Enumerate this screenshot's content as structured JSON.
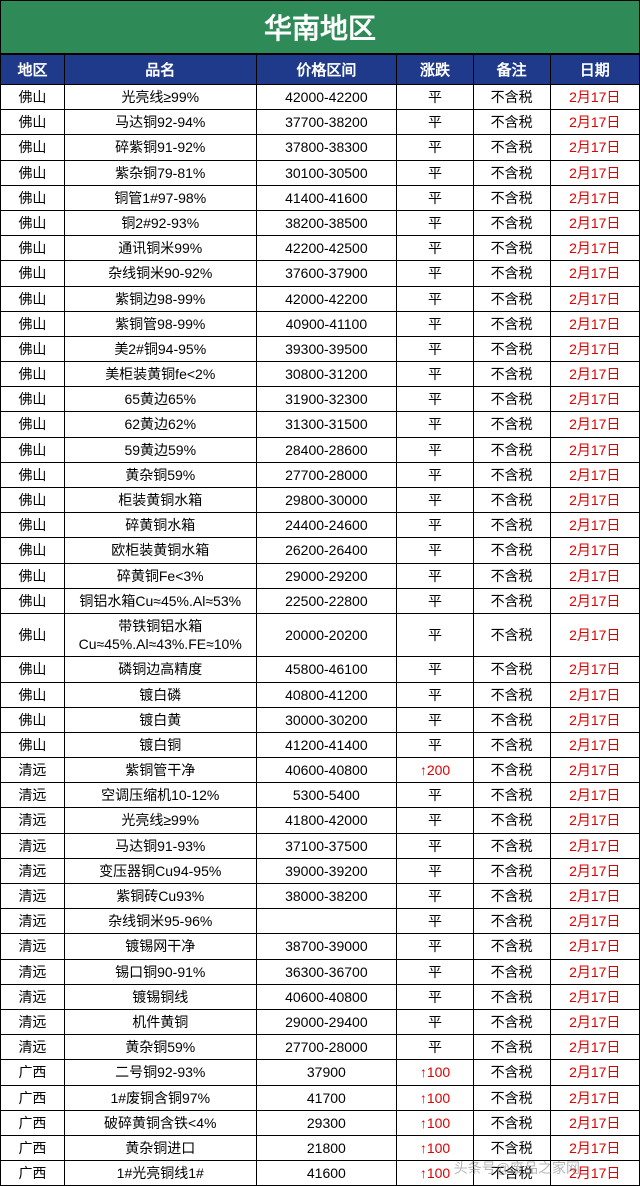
{
  "title": "华南地区",
  "headers": {
    "region": "地区",
    "product": "品名",
    "price": "价格区间",
    "change": "涨跌",
    "note": "备注",
    "date": "日期"
  },
  "watermark": "头条号@废品之家网",
  "table": {
    "columns": [
      "region",
      "product",
      "price",
      "change",
      "note",
      "date"
    ],
    "col_widths_pct": [
      10,
      30,
      22,
      12,
      12,
      14
    ],
    "header_bg": "#1f3a8a",
    "header_fg": "#ffffff",
    "title_bg": "#2e8b57",
    "title_fg": "#ffffff",
    "date_color": "#d00000",
    "up_color": "#d00000",
    "border_color": "#000000",
    "font_size_header": 15,
    "font_size_cell": 14
  },
  "rows": [
    {
      "region": "佛山",
      "product": "光亮线≥99%",
      "price": "42000-42200",
      "change": "平",
      "note": "不含税",
      "date": "2月17日",
      "up": false
    },
    {
      "region": "佛山",
      "product": "马达铜92-94%",
      "price": "37700-38200",
      "change": "平",
      "note": "不含税",
      "date": "2月17日",
      "up": false
    },
    {
      "region": "佛山",
      "product": "碎紫铜91-92%",
      "price": "37800-38300",
      "change": "平",
      "note": "不含税",
      "date": "2月17日",
      "up": false
    },
    {
      "region": "佛山",
      "product": "紫杂铜79-81%",
      "price": "30100-30500",
      "change": "平",
      "note": "不含税",
      "date": "2月17日",
      "up": false
    },
    {
      "region": "佛山",
      "product": "铜管1#97-98%",
      "price": "41400-41600",
      "change": "平",
      "note": "不含税",
      "date": "2月17日",
      "up": false
    },
    {
      "region": "佛山",
      "product": "铜2#92-93%",
      "price": "38200-38500",
      "change": "平",
      "note": "不含税",
      "date": "2月17日",
      "up": false
    },
    {
      "region": "佛山",
      "product": "通讯铜米99%",
      "price": "42200-42500",
      "change": "平",
      "note": "不含税",
      "date": "2月17日",
      "up": false
    },
    {
      "region": "佛山",
      "product": "杂线铜米90-92%",
      "price": "37600-37900",
      "change": "平",
      "note": "不含税",
      "date": "2月17日",
      "up": false
    },
    {
      "region": "佛山",
      "product": "紫铜边98-99%",
      "price": "42000-42200",
      "change": "平",
      "note": "不含税",
      "date": "2月17日",
      "up": false
    },
    {
      "region": "佛山",
      "product": "紫铜管98-99%",
      "price": "40900-41100",
      "change": "平",
      "note": "不含税",
      "date": "2月17日",
      "up": false
    },
    {
      "region": "佛山",
      "product": "美2#铜94-95%",
      "price": "39300-39500",
      "change": "平",
      "note": "不含税",
      "date": "2月17日",
      "up": false
    },
    {
      "region": "佛山",
      "product": "美柜装黄铜fe<2%",
      "price": "30800-31200",
      "change": "平",
      "note": "不含税",
      "date": "2月17日",
      "up": false
    },
    {
      "region": "佛山",
      "product": "65黄边65%",
      "price": "31900-32300",
      "change": "平",
      "note": "不含税",
      "date": "2月17日",
      "up": false
    },
    {
      "region": "佛山",
      "product": "62黄边62%",
      "price": "31300-31500",
      "change": "平",
      "note": "不含税",
      "date": "2月17日",
      "up": false
    },
    {
      "region": "佛山",
      "product": "59黄边59%",
      "price": "28400-28600",
      "change": "平",
      "note": "不含税",
      "date": "2月17日",
      "up": false
    },
    {
      "region": "佛山",
      "product": "黄杂铜59%",
      "price": "27700-28000",
      "change": "平",
      "note": "不含税",
      "date": "2月17日",
      "up": false
    },
    {
      "region": "佛山",
      "product": "柜装黄铜水箱",
      "price": "29800-30000",
      "change": "平",
      "note": "不含税",
      "date": "2月17日",
      "up": false
    },
    {
      "region": "佛山",
      "product": "碎黄铜水箱",
      "price": "24400-24600",
      "change": "平",
      "note": "不含税",
      "date": "2月17日",
      "up": false
    },
    {
      "region": "佛山",
      "product": "欧柜装黄铜水箱",
      "price": "26200-26400",
      "change": "平",
      "note": "不含税",
      "date": "2月17日",
      "up": false
    },
    {
      "region": "佛山",
      "product": "碎黄铜Fe<3%",
      "price": "29000-29200",
      "change": "平",
      "note": "不含税",
      "date": "2月17日",
      "up": false
    },
    {
      "region": "佛山",
      "product": "铜铝水箱Cu≈45%.Al≈53%",
      "price": "22500-22800",
      "change": "平",
      "note": "不含税",
      "date": "2月17日",
      "up": false
    },
    {
      "region": "佛山",
      "product": "带铁铜铝水箱Cu≈45%.Al≈43%.FE≈10%",
      "price": "20000-20200",
      "change": "平",
      "note": "不含税",
      "date": "2月17日",
      "up": false
    },
    {
      "region": "佛山",
      "product": "磷铜边高精度",
      "price": "45800-46100",
      "change": "平",
      "note": "不含税",
      "date": "2月17日",
      "up": false
    },
    {
      "region": "佛山",
      "product": "镀白磷",
      "price": "40800-41200",
      "change": "平",
      "note": "不含税",
      "date": "2月17日",
      "up": false
    },
    {
      "region": "佛山",
      "product": "镀白黄",
      "price": "30000-30200",
      "change": "平",
      "note": "不含税",
      "date": "2月17日",
      "up": false
    },
    {
      "region": "佛山",
      "product": "镀白铜",
      "price": "41200-41400",
      "change": "平",
      "note": "不含税",
      "date": "2月17日",
      "up": false
    },
    {
      "region": "清远",
      "product": "紫铜管干净",
      "price": "40600-40800",
      "change": "↑200",
      "note": "不含税",
      "date": "2月17日",
      "up": true
    },
    {
      "region": "清远",
      "product": "空调压缩机10-12%",
      "price": "5300-5400",
      "change": "平",
      "note": "不含税",
      "date": "2月17日",
      "up": false
    },
    {
      "region": "清远",
      "product": "光亮线≥99%",
      "price": "41800-42000",
      "change": "平",
      "note": "不含税",
      "date": "2月17日",
      "up": false
    },
    {
      "region": "清远",
      "product": "马达铜91-93%",
      "price": "37100-37500",
      "change": "平",
      "note": "不含税",
      "date": "2月17日",
      "up": false
    },
    {
      "region": "清远",
      "product": "变压器铜Cu94-95%",
      "price": "39000-39200",
      "change": "平",
      "note": "不含税",
      "date": "2月17日",
      "up": false
    },
    {
      "region": "清远",
      "product": "紫铜砖Cu93%",
      "price": "38000-38200",
      "change": "平",
      "note": "不含税",
      "date": "2月17日",
      "up": false
    },
    {
      "region": "清远",
      "product": "杂线铜米95-96%",
      "price": "",
      "change": "平",
      "note": "不含税",
      "date": "2月17日",
      "up": false
    },
    {
      "region": "清远",
      "product": "镀锡网干净",
      "price": "38700-39000",
      "change": "平",
      "note": "不含税",
      "date": "2月17日",
      "up": false
    },
    {
      "region": "清远",
      "product": "锡口铜90-91%",
      "price": "36300-36700",
      "change": "平",
      "note": "不含税",
      "date": "2月17日",
      "up": false
    },
    {
      "region": "清远",
      "product": "镀锡铜线",
      "price": "40600-40800",
      "change": "平",
      "note": "不含税",
      "date": "2月17日",
      "up": false
    },
    {
      "region": "清远",
      "product": "机件黄铜",
      "price": "29000-29400",
      "change": "平",
      "note": "不含税",
      "date": "2月17日",
      "up": false
    },
    {
      "region": "清远",
      "product": "黄杂铜59%",
      "price": "27700-28000",
      "change": "平",
      "note": "不含税",
      "date": "2月17日",
      "up": false
    },
    {
      "region": "广西",
      "product": "二号铜92-93%",
      "price": "37900",
      "change": "↑100",
      "note": "不含税",
      "date": "2月17日",
      "up": true
    },
    {
      "region": "广西",
      "product": "1#废铜含铜97%",
      "price": "41700",
      "change": "↑100",
      "note": "不含税",
      "date": "2月17日",
      "up": true
    },
    {
      "region": "广西",
      "product": "破碎黄铜含铁<4%",
      "price": "29300",
      "change": "↑100",
      "note": "不含税",
      "date": "2月17日",
      "up": true
    },
    {
      "region": "广西",
      "product": "黄杂铜进口",
      "price": "21800",
      "change": "↑100",
      "note": "不含税",
      "date": "2月17日",
      "up": true
    },
    {
      "region": "广西",
      "product": "1#光亮铜线1#",
      "price": "41600",
      "change": "↑100",
      "note": "不含税",
      "date": "2月17日",
      "up": true
    }
  ]
}
